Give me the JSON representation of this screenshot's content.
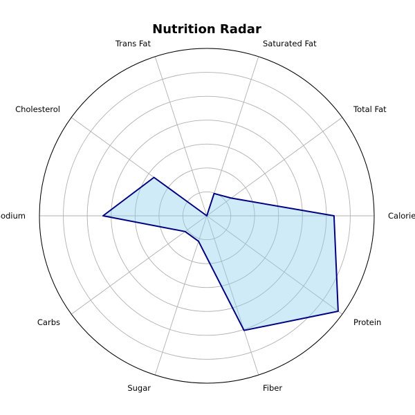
{
  "chart_data": {
    "type": "radar",
    "title": "Nutrition Radar",
    "categories": [
      "Calories",
      "Total Fat",
      "Saturated Fat",
      "Trans Fat",
      "Cholesterol",
      "Sodium",
      "Carbs",
      "Sugar",
      "Fiber",
      "Protein"
    ],
    "series": [
      {
        "values": [
          0.76,
          0.18,
          0.14,
          0.0,
          0.39,
          0.62,
          0.16,
          0.16,
          0.72,
          0.97
        ]
      }
    ],
    "rlim": [
      0,
      1
    ],
    "rings": 7,
    "grid": true,
    "colors": {
      "line": "#000080",
      "fill": "#87ceeb",
      "grid": "#b0b0b0"
    }
  }
}
